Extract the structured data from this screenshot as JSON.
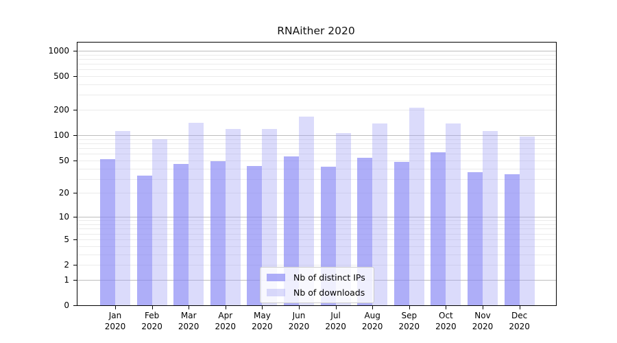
{
  "title": "RNAither 2020",
  "legend": {
    "items": [
      {
        "label": "Nb of distinct IPs",
        "swatch_color": "#aaaaf8"
      },
      {
        "label": "Nb of downloads",
        "swatch_color": "#dbdbf8"
      }
    ]
  },
  "chart_data": {
    "type": "bar",
    "title": "RNAither 2020",
    "scale": "log1p",
    "categories": [
      "Jan",
      "Feb",
      "Mar",
      "Apr",
      "May",
      "Jun",
      "Jul",
      "Aug",
      "Sep",
      "Oct",
      "Nov",
      "Dec"
    ],
    "category_sub": "2020",
    "series": [
      {
        "name": "Nb of distinct IPs",
        "color": "#aaaaf8",
        "values": [
          52,
          33,
          45,
          49,
          43,
          56,
          42,
          54,
          48,
          63,
          36,
          34
        ]
      },
      {
        "name": "Nb of downloads",
        "color": "#dbdbf8",
        "values": [
          113,
          89,
          140,
          118,
          118,
          166,
          106,
          137,
          213,
          139,
          113,
          97
        ]
      }
    ],
    "y_ticks": [
      0,
      1,
      2,
      5,
      10,
      20,
      50,
      100,
      200,
      500,
      1000
    ],
    "ylim": [
      0,
      1220
    ],
    "xlabel": "",
    "ylabel": "",
    "grid": true,
    "legend_position": "bottom-center-inside"
  }
}
